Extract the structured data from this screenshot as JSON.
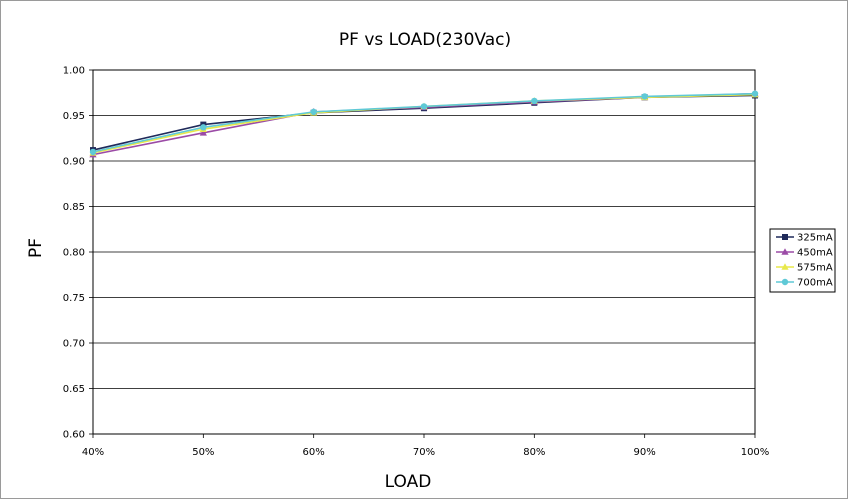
{
  "chart_data": {
    "type": "line",
    "title": "PF vs LOAD(230Vac)",
    "xlabel": "LOAD",
    "ylabel": "PF",
    "categories": [
      "40%",
      "50%",
      "60%",
      "70%",
      "80%",
      "90%",
      "100%"
    ],
    "ylim": [
      0.6,
      1.0
    ],
    "yticks": [
      "0.60",
      "0.65",
      "0.70",
      "0.75",
      "0.80",
      "0.85",
      "0.90",
      "0.95",
      "1.00"
    ],
    "grid": "horizontal",
    "legend_position": "right",
    "series": [
      {
        "name": "325mA",
        "color": "#1f2a5a",
        "marker": "square",
        "values": [
          0.912,
          0.94,
          0.953,
          0.958,
          0.964,
          0.97,
          0.972
        ]
      },
      {
        "name": "450mA",
        "color": "#9b4ba6",
        "marker": "triangle",
        "values": [
          0.907,
          0.931,
          0.954,
          0.959,
          0.965,
          0.97,
          0.974
        ]
      },
      {
        "name": "575mA",
        "color": "#e8e84a",
        "marker": "triangle",
        "values": [
          0.909,
          0.935,
          0.953,
          0.96,
          0.966,
          0.97,
          0.973
        ]
      },
      {
        "name": "700mA",
        "color": "#5fc9d6",
        "marker": "circle",
        "values": [
          0.91,
          0.937,
          0.954,
          0.96,
          0.966,
          0.971,
          0.974
        ]
      }
    ]
  }
}
